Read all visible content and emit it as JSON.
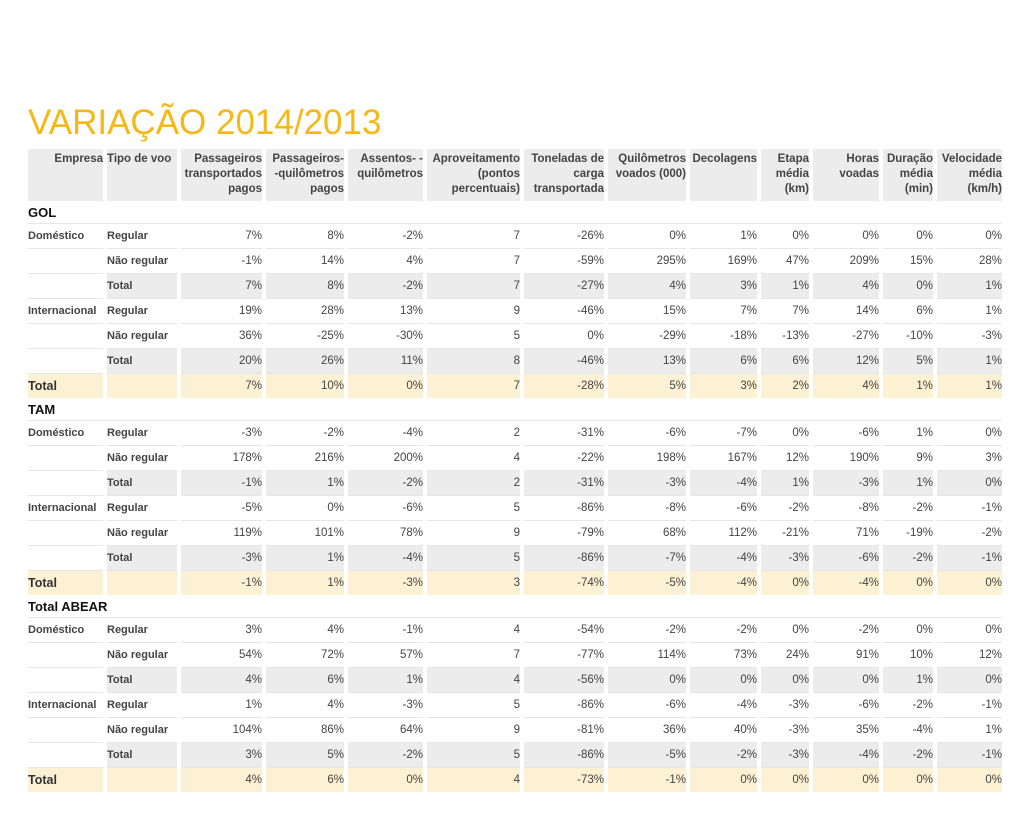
{
  "title": "VARIAÇÃO 2014/2013",
  "header": [
    {
      "label": "Empresa",
      "align": "r"
    },
    {
      "label": "Tipo de voo",
      "align": "l"
    },
    {
      "label": "Passageiros transportados pagos",
      "align": "r"
    },
    {
      "label": "Passageiros- -quilômetros pagos",
      "align": "r"
    },
    {
      "label": "Assentos- -quilômetros",
      "align": "r"
    },
    {
      "label": "Aproveitamento (pontos percentuais)",
      "align": "r"
    },
    {
      "label": "Toneladas de carga transportada",
      "align": "r"
    },
    {
      "label": "Quilômetros voados (000)",
      "align": "r"
    },
    {
      "label": "Decolagens",
      "align": "r"
    },
    {
      "label": "Etapa média (km)",
      "align": "r"
    },
    {
      "label": "Horas voadas",
      "align": "r"
    },
    {
      "label": "Duração média (min)",
      "align": "r"
    },
    {
      "label": "Velocidade média (km/h)",
      "align": "r"
    }
  ],
  "groups": [
    {
      "name": "GOL",
      "rows": [
        {
          "kind": "row",
          "empresa": "Doméstico",
          "tipo": "Regular",
          "values": [
            "7%",
            "8%",
            "-2%",
            "7",
            "-26%",
            "0%",
            "1%",
            "0%",
            "0%",
            "0%",
            "0%"
          ]
        },
        {
          "kind": "row",
          "empresa": "",
          "tipo": "Não regular",
          "values": [
            "-1%",
            "14%",
            "4%",
            "7",
            "-59%",
            "295%",
            "169%",
            "47%",
            "209%",
            "15%",
            "28%"
          ]
        },
        {
          "kind": "sub",
          "empresa": "",
          "tipo": "Total",
          "values": [
            "7%",
            "8%",
            "-2%",
            "7",
            "-27%",
            "4%",
            "3%",
            "1%",
            "4%",
            "0%",
            "1%"
          ]
        },
        {
          "kind": "row",
          "empresa": "Internacional",
          "tipo": "Regular",
          "values": [
            "19%",
            "28%",
            "13%",
            "9",
            "-46%",
            "15%",
            "7%",
            "7%",
            "14%",
            "6%",
            "1%"
          ]
        },
        {
          "kind": "row",
          "empresa": "",
          "tipo": "Não regular",
          "values": [
            "36%",
            "-25%",
            "-30%",
            "5",
            "0%",
            "-29%",
            "-18%",
            "-13%",
            "-27%",
            "-10%",
            "-3%"
          ]
        },
        {
          "kind": "sub",
          "empresa": "",
          "tipo": "Total",
          "values": [
            "20%",
            "26%",
            "11%",
            "8",
            "-46%",
            "13%",
            "6%",
            "6%",
            "12%",
            "5%",
            "1%"
          ]
        },
        {
          "kind": "tot",
          "empresa": "Total",
          "tipo": "",
          "values": [
            "7%",
            "10%",
            "0%",
            "7",
            "-28%",
            "5%",
            "3%",
            "2%",
            "4%",
            "1%",
            "1%"
          ]
        }
      ]
    },
    {
      "name": "TAM",
      "rows": [
        {
          "kind": "row",
          "empresa": "Doméstico",
          "tipo": "Regular",
          "values": [
            "-3%",
            "-2%",
            "-4%",
            "2",
            "-31%",
            "-6%",
            "-7%",
            "0%",
            "-6%",
            "1%",
            "0%"
          ]
        },
        {
          "kind": "row",
          "empresa": "",
          "tipo": "Não regular",
          "values": [
            "178%",
            "216%",
            "200%",
            "4",
            "-22%",
            "198%",
            "167%",
            "12%",
            "190%",
            "9%",
            "3%"
          ]
        },
        {
          "kind": "sub",
          "empresa": "",
          "tipo": "Total",
          "values": [
            "-1%",
            "1%",
            "-2%",
            "2",
            "-31%",
            "-3%",
            "-4%",
            "1%",
            "-3%",
            "1%",
            "0%"
          ]
        },
        {
          "kind": "row",
          "empresa": "Internacional",
          "tipo": "Regular",
          "values": [
            "-5%",
            "0%",
            "-6%",
            "5",
            "-86%",
            "-8%",
            "-6%",
            "-2%",
            "-8%",
            "-2%",
            "-1%"
          ]
        },
        {
          "kind": "row",
          "empresa": "",
          "tipo": "Não regular",
          "values": [
            "119%",
            "101%",
            "78%",
            "9",
            "-79%",
            "68%",
            "112%",
            "-21%",
            "71%",
            "-19%",
            "-2%"
          ]
        },
        {
          "kind": "sub",
          "empresa": "",
          "tipo": "Total",
          "values": [
            "-3%",
            "1%",
            "-4%",
            "5",
            "-86%",
            "-7%",
            "-4%",
            "-3%",
            "-6%",
            "-2%",
            "-1%"
          ]
        },
        {
          "kind": "tot",
          "empresa": "Total",
          "tipo": "",
          "values": [
            "-1%",
            "1%",
            "-3%",
            "3",
            "-74%",
            "-5%",
            "-4%",
            "0%",
            "-4%",
            "0%",
            "0%"
          ]
        }
      ]
    },
    {
      "name": "Total ABEAR",
      "rows": [
        {
          "kind": "row",
          "empresa": "Doméstico",
          "tipo": "Regular",
          "values": [
            "3%",
            "4%",
            "-1%",
            "4",
            "-54%",
            "-2%",
            "-2%",
            "0%",
            "-2%",
            "0%",
            "0%"
          ]
        },
        {
          "kind": "row",
          "empresa": "",
          "tipo": "Não regular",
          "values": [
            "54%",
            "72%",
            "57%",
            "7",
            "-77%",
            "114%",
            "73%",
            "24%",
            "91%",
            "10%",
            "12%"
          ]
        },
        {
          "kind": "sub",
          "empresa": "",
          "tipo": "Total",
          "values": [
            "4%",
            "6%",
            "1%",
            "4",
            "-56%",
            "0%",
            "0%",
            "0%",
            "0%",
            "1%",
            "0%"
          ]
        },
        {
          "kind": "row",
          "empresa": "Internacional",
          "tipo": "Regular",
          "values": [
            "1%",
            "4%",
            "-3%",
            "5",
            "-86%",
            "-6%",
            "-4%",
            "-3%",
            "-6%",
            "-2%",
            "-1%"
          ]
        },
        {
          "kind": "row",
          "empresa": "",
          "tipo": "Não regular",
          "values": [
            "104%",
            "86%",
            "64%",
            "9",
            "-81%",
            "36%",
            "40%",
            "-3%",
            "35%",
            "-4%",
            "1%"
          ]
        },
        {
          "kind": "sub",
          "empresa": "",
          "tipo": "Total",
          "values": [
            "3%",
            "5%",
            "-2%",
            "5",
            "-86%",
            "-5%",
            "-2%",
            "-3%",
            "-4%",
            "-2%",
            "-1%"
          ]
        },
        {
          "kind": "tot",
          "empresa": "Total",
          "tipo": "",
          "values": [
            "4%",
            "6%",
            "0%",
            "4",
            "-73%",
            "-1%",
            "0%",
            "0%",
            "0%",
            "0%",
            "0%"
          ]
        }
      ]
    }
  ]
}
